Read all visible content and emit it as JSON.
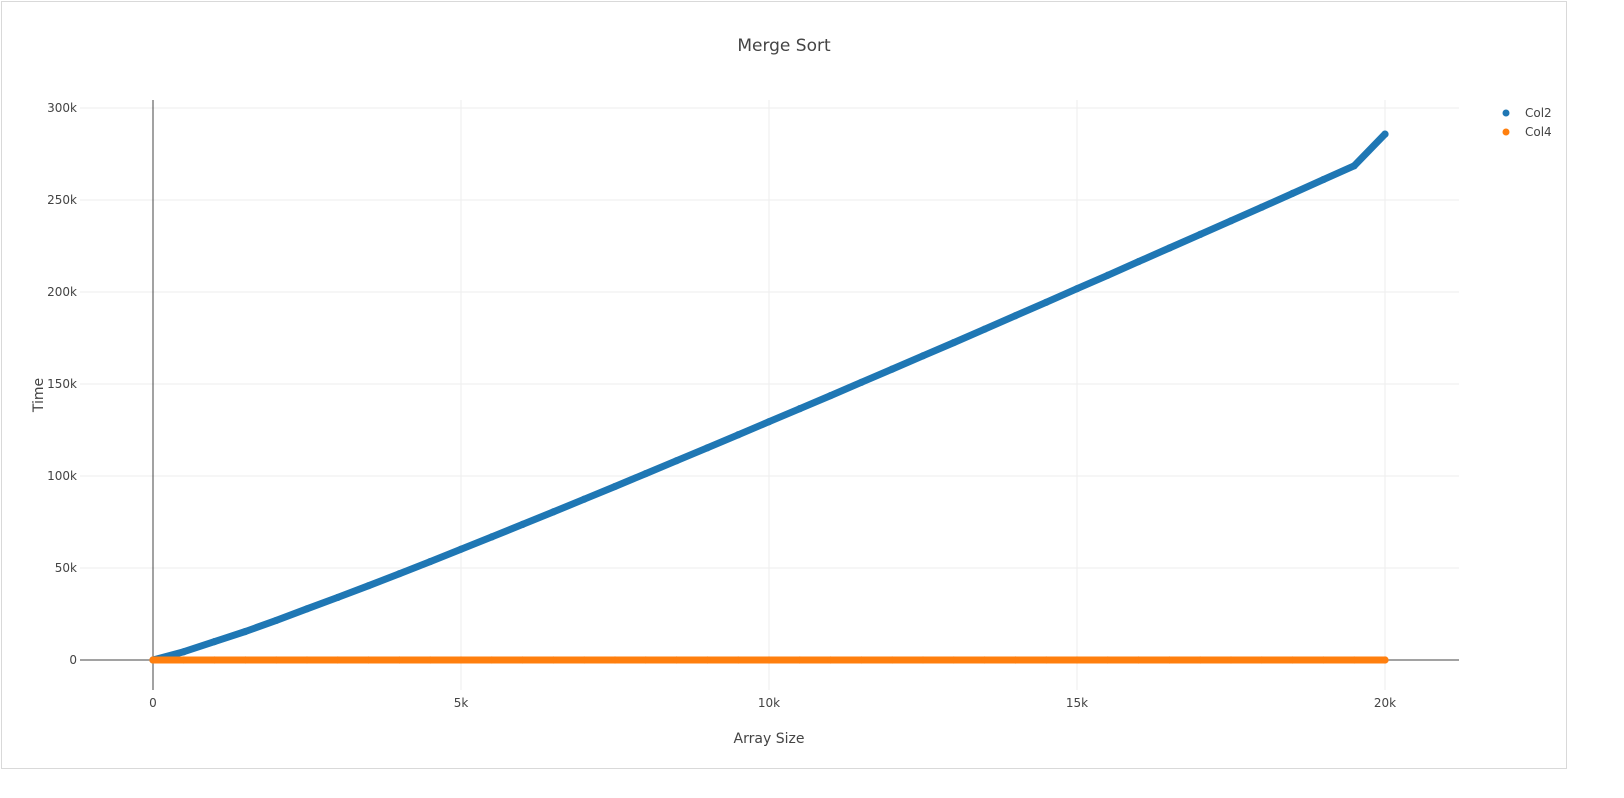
{
  "chart_data": {
    "type": "scatter",
    "title": "Merge Sort",
    "xlabel": "Array Size",
    "ylabel": "Time",
    "xlim": [
      -1200,
      21200
    ],
    "ylim": [
      -10000,
      305000
    ],
    "x_ticks": [
      0,
      5000,
      10000,
      15000,
      20000
    ],
    "x_tick_labels": [
      "0",
      "5k",
      "10k",
      "15k",
      "20k"
    ],
    "y_ticks": [
      0,
      50000,
      100000,
      150000,
      200000,
      250000,
      300000
    ],
    "y_tick_labels": [
      "0",
      "50k",
      "100k",
      "150k",
      "200k",
      "250k",
      "300k"
    ],
    "grid": true,
    "legend_position": "top-right",
    "series": [
      {
        "name": "Col2",
        "color": "#1f77b4",
        "x": [
          0,
          500,
          1000,
          1500,
          2000,
          2500,
          3000,
          3500,
          4000,
          4500,
          5000,
          5500,
          6000,
          6500,
          7000,
          7500,
          8000,
          8500,
          9000,
          9500,
          10000,
          10500,
          11000,
          11500,
          12000,
          12500,
          13000,
          13500,
          14000,
          14500,
          15000,
          15500,
          16000,
          16500,
          17000,
          17500,
          18000,
          18500,
          19000,
          19500,
          20000
        ],
        "y": [
          0,
          4500,
          10000,
          15500,
          21500,
          27800,
          34000,
          40400,
          46900,
          53500,
          60200,
          66900,
          73700,
          80500,
          87400,
          94300,
          101300,
          108300,
          115300,
          122400,
          129500,
          136600,
          143700,
          150900,
          158100,
          165300,
          172500,
          179800,
          187100,
          194400,
          201800,
          209100,
          216500,
          223900,
          231300,
          238700,
          246100,
          253600,
          261100,
          268600,
          285800
        ]
      },
      {
        "name": "Col4",
        "color": "#ff7f0e",
        "x": [
          0,
          500,
          1000,
          1500,
          2000,
          2500,
          3000,
          3500,
          4000,
          4500,
          5000,
          5500,
          6000,
          6500,
          7000,
          7500,
          8000,
          8500,
          9000,
          9500,
          10000,
          10500,
          11000,
          11500,
          12000,
          12500,
          13000,
          13500,
          14000,
          14500,
          15000,
          15500,
          16000,
          16500,
          17000,
          17500,
          18000,
          18500,
          19000,
          19500,
          20000
        ],
        "y": [
          0,
          0,
          0,
          0,
          0,
          0,
          0,
          0,
          0,
          0,
          0,
          0,
          0,
          0,
          0,
          0,
          0,
          0,
          0,
          0,
          0,
          0,
          0,
          0,
          0,
          0,
          0,
          0,
          0,
          0,
          0,
          0,
          0,
          0,
          0,
          0,
          0,
          0,
          0,
          0,
          0
        ]
      }
    ]
  }
}
